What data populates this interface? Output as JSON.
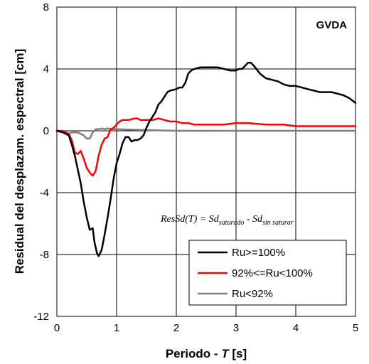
{
  "chart_data": {
    "type": "line",
    "station_label": "GVDA",
    "xlabel_prefix": "Periodo - ",
    "xlabel_var": "T",
    "xlabel_suffix": " [s]",
    "ylabel": "Residual del desplazam. espectral [cm]",
    "xlim": [
      0,
      5
    ],
    "ylim": [
      -12,
      8
    ],
    "x_ticks": [
      "0",
      "1",
      "2",
      "3",
      "4",
      "5"
    ],
    "y_ticks": [
      "-12",
      "-8",
      "-4",
      "0",
      "4",
      "8"
    ],
    "grid": true,
    "legend_position": "bottom-right",
    "formula": {
      "lhs": "ResSd(T) = Sd",
      "sub1": "saturado",
      "mid": " - Sd",
      "sub2": "sin saturar"
    },
    "series": [
      {
        "name": "Ru>=100%",
        "color": "#000000",
        "points": [
          [
            0,
            0
          ],
          [
            0.1,
            -0.1
          ],
          [
            0.15,
            -0.2
          ],
          [
            0.2,
            -0.3
          ],
          [
            0.25,
            -0.9
          ],
          [
            0.3,
            -1.6
          ],
          [
            0.35,
            -2.5
          ],
          [
            0.4,
            -3.4
          ],
          [
            0.45,
            -4.6
          ],
          [
            0.5,
            -5.6
          ],
          [
            0.55,
            -6.4
          ],
          [
            0.6,
            -6.3
          ],
          [
            0.63,
            -7.2
          ],
          [
            0.67,
            -7.9
          ],
          [
            0.7,
            -8.1
          ],
          [
            0.75,
            -7.7
          ],
          [
            0.8,
            -6.7
          ],
          [
            0.85,
            -5.6
          ],
          [
            0.9,
            -4.4
          ],
          [
            0.95,
            -3.1
          ],
          [
            1.0,
            -2.1
          ],
          [
            1.05,
            -1.5
          ],
          [
            1.1,
            -0.8
          ],
          [
            1.15,
            -0.4
          ],
          [
            1.2,
            -0.4
          ],
          [
            1.25,
            -0.7
          ],
          [
            1.3,
            -0.6
          ],
          [
            1.35,
            -0.6
          ],
          [
            1.4,
            -0.5
          ],
          [
            1.45,
            -0.3
          ],
          [
            1.5,
            0.2
          ],
          [
            1.55,
            0.6
          ],
          [
            1.6,
            0.9
          ],
          [
            1.65,
            1.2
          ],
          [
            1.7,
            1.7
          ],
          [
            1.75,
            1.9
          ],
          [
            1.8,
            2.2
          ],
          [
            1.85,
            2.5
          ],
          [
            1.9,
            2.6
          ],
          [
            2.0,
            2.7
          ],
          [
            2.05,
            2.8
          ],
          [
            2.1,
            2.8
          ],
          [
            2.15,
            3.1
          ],
          [
            2.2,
            3.7
          ],
          [
            2.25,
            3.9
          ],
          [
            2.3,
            4.0
          ],
          [
            2.4,
            4.1
          ],
          [
            2.5,
            4.1
          ],
          [
            2.6,
            4.1
          ],
          [
            2.7,
            4.1
          ],
          [
            2.8,
            4.0
          ],
          [
            2.9,
            3.9
          ],
          [
            3.0,
            3.9
          ],
          [
            3.05,
            4.0
          ],
          [
            3.1,
            4.0
          ],
          [
            3.15,
            4.2
          ],
          [
            3.2,
            4.4
          ],
          [
            3.25,
            4.4
          ],
          [
            3.3,
            4.2
          ],
          [
            3.4,
            3.7
          ],
          [
            3.5,
            3.4
          ],
          [
            3.6,
            3.3
          ],
          [
            3.7,
            3.2
          ],
          [
            3.8,
            3.0
          ],
          [
            3.9,
            2.9
          ],
          [
            4.0,
            2.9
          ],
          [
            4.1,
            2.8
          ],
          [
            4.2,
            2.7
          ],
          [
            4.3,
            2.6
          ],
          [
            4.4,
            2.5
          ],
          [
            4.5,
            2.5
          ],
          [
            4.6,
            2.5
          ],
          [
            4.7,
            2.4
          ],
          [
            4.8,
            2.3
          ],
          [
            4.9,
            2.1
          ],
          [
            5.0,
            1.8
          ]
        ]
      },
      {
        "name": "92%<=Ru<100%",
        "color": "#ff0000",
        "points": [
          [
            0,
            0
          ],
          [
            0.1,
            0
          ],
          [
            0.2,
            -0.2
          ],
          [
            0.25,
            -0.6
          ],
          [
            0.3,
            -1.4
          ],
          [
            0.35,
            -1.5
          ],
          [
            0.4,
            -1.3
          ],
          [
            0.45,
            -1.8
          ],
          [
            0.5,
            -2.4
          ],
          [
            0.55,
            -2.7
          ],
          [
            0.6,
            -2.9
          ],
          [
            0.65,
            -2.6
          ],
          [
            0.7,
            -1.6
          ],
          [
            0.75,
            -0.9
          ],
          [
            0.8,
            -0.5
          ],
          [
            0.85,
            -0.4
          ],
          [
            0.9,
            0.1
          ],
          [
            0.95,
            0.2
          ],
          [
            1.0,
            0.4
          ],
          [
            1.05,
            0.6
          ],
          [
            1.1,
            0.7
          ],
          [
            1.2,
            0.7
          ],
          [
            1.3,
            0.8
          ],
          [
            1.35,
            0.8
          ],
          [
            1.4,
            0.7
          ],
          [
            1.5,
            0.7
          ],
          [
            1.6,
            0.7
          ],
          [
            1.7,
            0.8
          ],
          [
            1.8,
            0.7
          ],
          [
            1.9,
            0.6
          ],
          [
            2.0,
            0.6
          ],
          [
            2.1,
            0.5
          ],
          [
            2.2,
            0.5
          ],
          [
            2.3,
            0.4
          ],
          [
            2.5,
            0.4
          ],
          [
            2.8,
            0.4
          ],
          [
            3.0,
            0.5
          ],
          [
            3.2,
            0.5
          ],
          [
            3.5,
            0.4
          ],
          [
            3.8,
            0.4
          ],
          [
            4.0,
            0.3
          ],
          [
            4.3,
            0.3
          ],
          [
            4.6,
            0.3
          ],
          [
            5.0,
            0.3
          ]
        ]
      },
      {
        "name": "Ru<92%",
        "color": "#808080",
        "points": [
          [
            0,
            0
          ],
          [
            0.1,
            -0.1
          ],
          [
            0.15,
            -0.15
          ],
          [
            0.2,
            -0.2
          ],
          [
            0.25,
            -0.1
          ],
          [
            0.3,
            -0.1
          ],
          [
            0.35,
            -0.1
          ],
          [
            0.4,
            -0.2
          ],
          [
            0.45,
            -0.3
          ],
          [
            0.5,
            -0.5
          ],
          [
            0.55,
            -0.5
          ],
          [
            0.6,
            -0.1
          ],
          [
            0.65,
            0.1
          ],
          [
            0.7,
            0.1
          ],
          [
            0.75,
            0.15
          ],
          [
            0.8,
            0.1
          ],
          [
            0.85,
            0.15
          ],
          [
            0.9,
            0.1
          ],
          [
            1.0,
            0.1
          ],
          [
            1.5,
            0.05
          ],
          [
            2.0,
            0
          ],
          [
            3.0,
            0
          ],
          [
            4.0,
            0
          ],
          [
            5.0,
            0
          ]
        ]
      }
    ]
  }
}
